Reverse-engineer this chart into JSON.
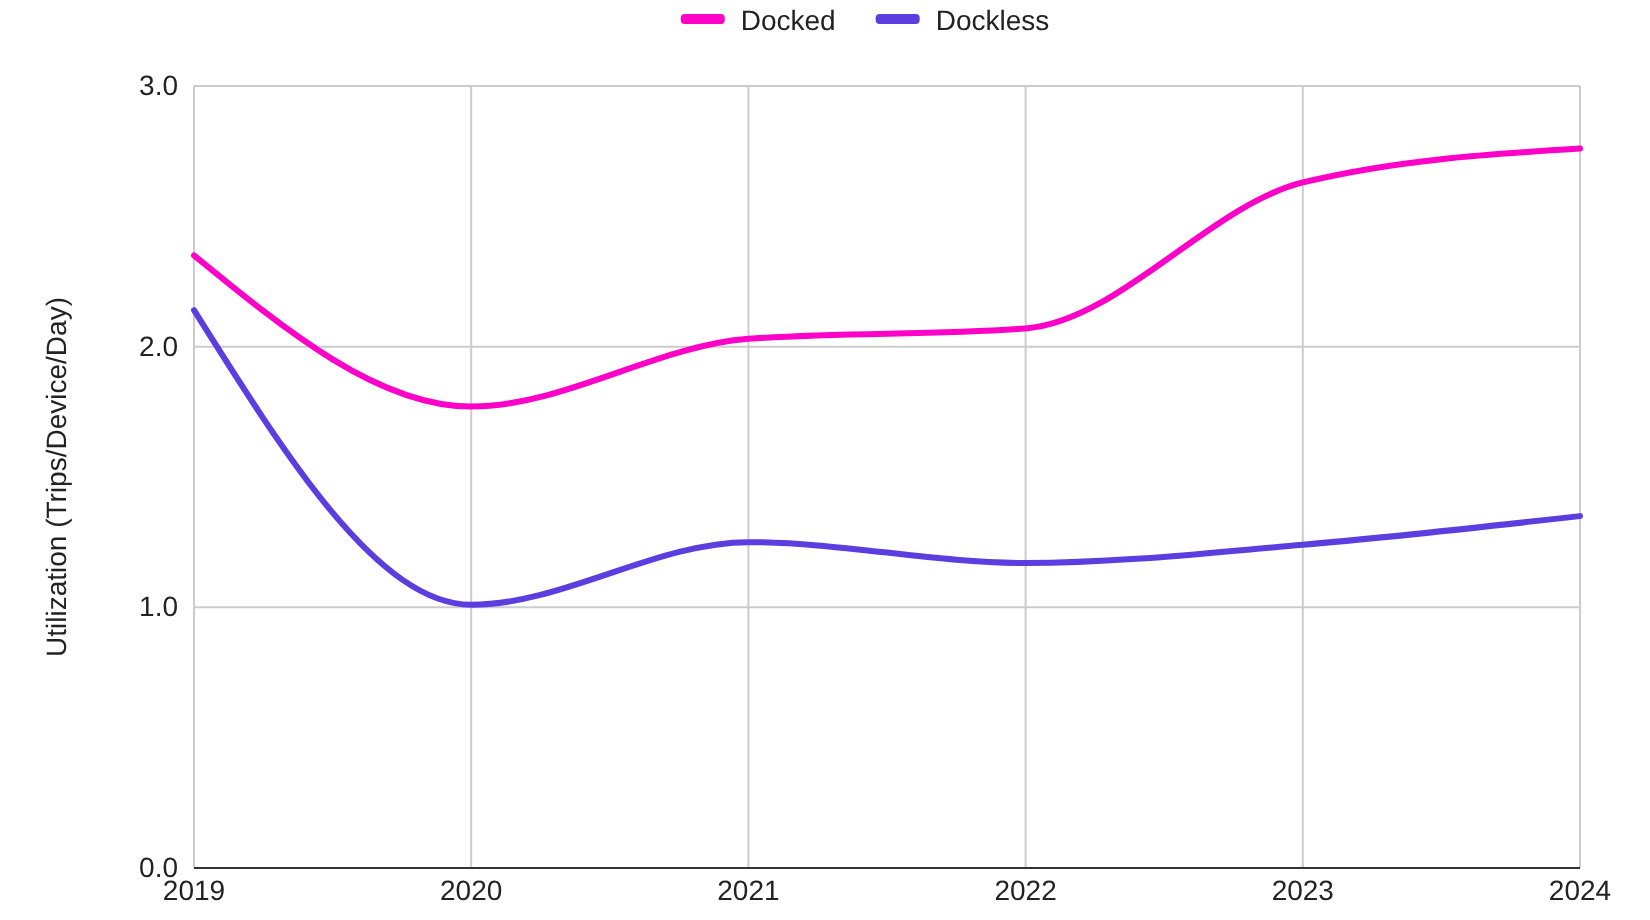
{
  "chart_data": {
    "type": "line",
    "ylabel": "Utilization (Trips/Device/Day)",
    "x": [
      2019,
      2020,
      2021,
      2022,
      2023,
      2024
    ],
    "series": [
      {
        "name": "Docked",
        "color": "#ff00c8",
        "values": [
          2.35,
          1.77,
          2.03,
          2.07,
          2.63,
          2.76
        ]
      },
      {
        "name": "Dockless",
        "color": "#5a3ee0",
        "values": [
          2.14,
          1.01,
          1.25,
          1.17,
          1.24,
          1.35
        ]
      }
    ],
    "xlim": [
      2019,
      2024
    ],
    "xticks": [
      2019,
      2020,
      2021,
      2022,
      2023,
      2024
    ],
    "ylim": [
      0,
      3
    ],
    "yticks": [
      {
        "value": 0,
        "label": "0.0"
      },
      {
        "value": 1,
        "label": "1.0"
      },
      {
        "value": 2,
        "label": "2.0"
      },
      {
        "value": 3,
        "label": "3.0"
      }
    ],
    "grid": true,
    "legend": "top"
  }
}
